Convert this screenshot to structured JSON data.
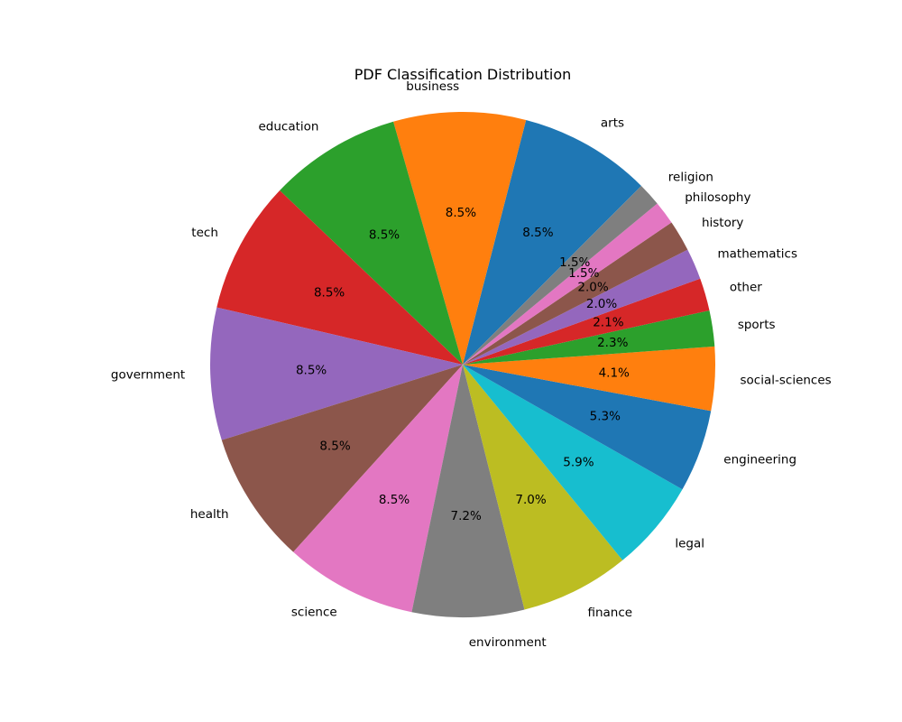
{
  "chart_data": {
    "type": "pie",
    "title": "PDF Classification Distribution",
    "start_angle_deg": 45,
    "direction": "counterclockwise",
    "slices": [
      {
        "label": "arts",
        "value": 8.5,
        "pct_text": "8.5%",
        "color": "#1f77b4"
      },
      {
        "label": "business",
        "value": 8.5,
        "pct_text": "8.5%",
        "color": "#ff7f0e"
      },
      {
        "label": "education",
        "value": 8.5,
        "pct_text": "8.5%",
        "color": "#2ca02c"
      },
      {
        "label": "tech",
        "value": 8.5,
        "pct_text": "8.5%",
        "color": "#d62728"
      },
      {
        "label": "government",
        "value": 8.5,
        "pct_text": "8.5%",
        "color": "#9467bd"
      },
      {
        "label": "health",
        "value": 8.5,
        "pct_text": "8.5%",
        "color": "#8c564b"
      },
      {
        "label": "science",
        "value": 8.5,
        "pct_text": "8.5%",
        "color": "#e377c2"
      },
      {
        "label": "environment",
        "value": 7.2,
        "pct_text": "7.2%",
        "color": "#7f7f7f"
      },
      {
        "label": "finance",
        "value": 7.0,
        "pct_text": "7.0%",
        "color": "#bcbd22"
      },
      {
        "label": "legal",
        "value": 5.9,
        "pct_text": "5.9%",
        "color": "#17becf"
      },
      {
        "label": "engineering",
        "value": 5.3,
        "pct_text": "5.3%",
        "color": "#1f77b4"
      },
      {
        "label": "social-sciences",
        "value": 4.1,
        "pct_text": "4.1%",
        "color": "#ff7f0e"
      },
      {
        "label": "sports",
        "value": 2.3,
        "pct_text": "2.3%",
        "color": "#2ca02c"
      },
      {
        "label": "other",
        "value": 2.1,
        "pct_text": "2.1%",
        "color": "#d62728"
      },
      {
        "label": "mathematics",
        "value": 2.0,
        "pct_text": "2.0%",
        "color": "#9467bd"
      },
      {
        "label": "history",
        "value": 2.0,
        "pct_text": "2.0%",
        "color": "#8c564b"
      },
      {
        "label": "philosophy",
        "value": 1.5,
        "pct_text": "1.5%",
        "color": "#e377c2"
      },
      {
        "label": "religion",
        "value": 1.5,
        "pct_text": "1.5%",
        "color": "#7f7f7f"
      }
    ]
  }
}
